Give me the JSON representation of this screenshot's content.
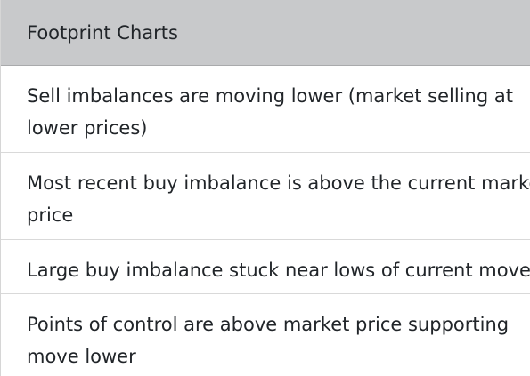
{
  "card": {
    "header": "Footprint Charts",
    "items": [
      {
        "line1": "Sell imbalances are moving lower (market selling at",
        "line2": "lower prices)"
      },
      {
        "line1": "Most recent buy imbalance is above the current marke",
        "line2": "price"
      },
      {
        "line1": "Large buy imbalance stuck near lows of current move"
      },
      {
        "line1": "Points of control are above market price supporting",
        "line2": "move lower"
      }
    ]
  }
}
